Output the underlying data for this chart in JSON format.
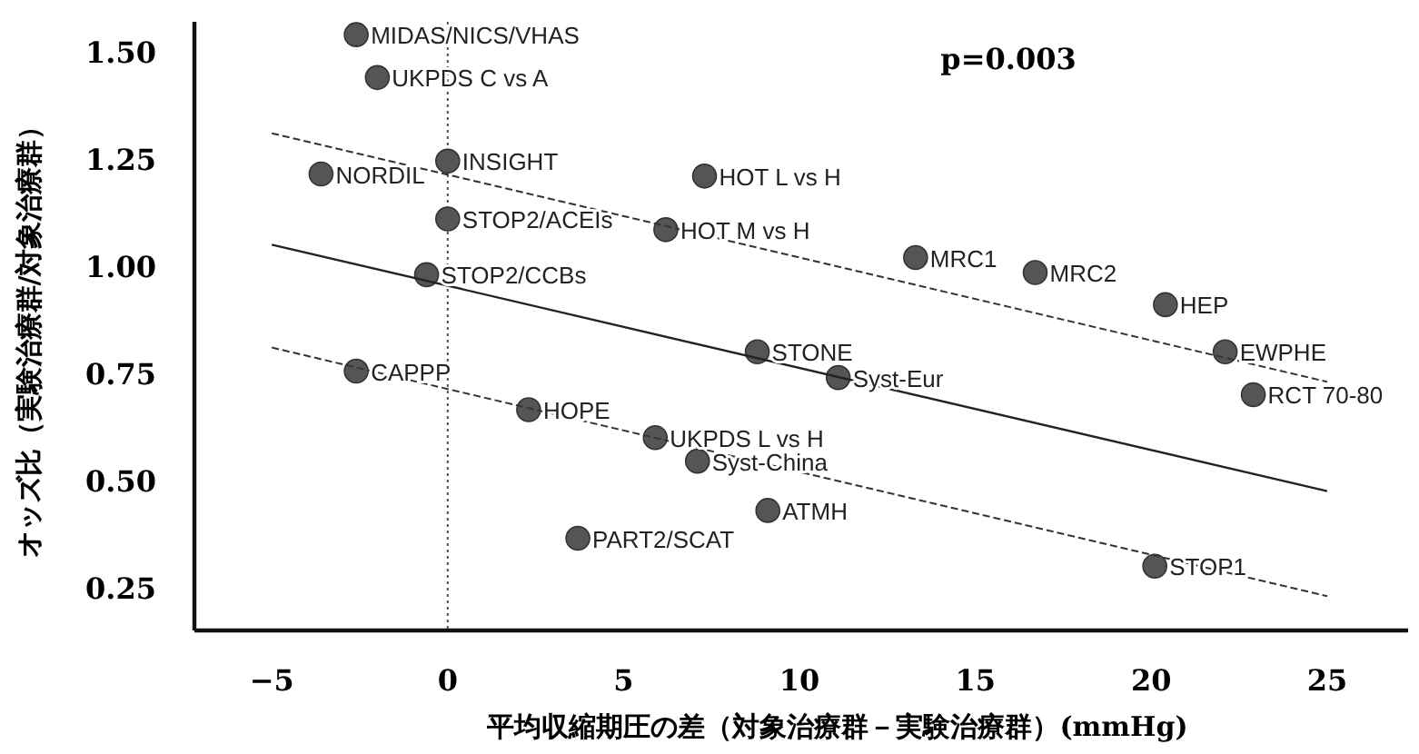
{
  "chart_data": {
    "type": "scatter",
    "xlabel": "平均収縮期圧の差（対象治療群－実験治療群）(mmHg)",
    "ylabel": "オッズ比（実験治療群/対象治療群）",
    "xlim": [
      -7.2,
      27.3
    ],
    "ylim": [
      0.15,
      1.57
    ],
    "xticks": [
      -5,
      0,
      5,
      10,
      15,
      20,
      25
    ],
    "yticks": [
      {
        "value": 0.25,
        "label": "0.25"
      },
      {
        "value": 0.5,
        "label": "0.50"
      },
      {
        "value": 0.75,
        "label": "0.75"
      },
      {
        "value": 1.0,
        "label": "1.00"
      },
      {
        "value": 1.25,
        "label": "1.25"
      },
      {
        "value": 1.5,
        "label": "1.50"
      }
    ],
    "series": [
      {
        "type": "scatter",
        "color": "#555555",
        "marker": "circle",
        "x": [
          -2.6,
          -2.0,
          -3.6,
          0,
          0,
          -0.6,
          7.3,
          6.2,
          13.3,
          16.7,
          20.4,
          22.1,
          22.9,
          8.8,
          11.1,
          -2.6,
          2.3,
          5.9,
          7.1,
          9.1,
          3.7,
          20.1
        ],
        "values": [
          1.54,
          1.44,
          1.215,
          1.245,
          1.11,
          0.98,
          1.21,
          1.085,
          1.02,
          0.985,
          0.91,
          0.8,
          0.7,
          0.8,
          0.74,
          0.755,
          0.665,
          0.6,
          0.545,
          0.43,
          0.365,
          0.3
        ]
      },
      {
        "type": "line",
        "color": "#333333",
        "marker": "none",
        "line_style": "dashed",
        "x": [
          -5,
          25
        ],
        "values": [
          1.31,
          0.73
        ]
      },
      {
        "type": "line",
        "color": "#222222",
        "marker": "none",
        "line_style": "solid",
        "x": [
          -5,
          25
        ],
        "values": [
          1.05,
          0.475
        ]
      },
      {
        "type": "line",
        "color": "#333333",
        "marker": "none",
        "line_style": "dashed",
        "x": [
          -5,
          25
        ],
        "values": [
          0.81,
          0.23
        ]
      }
    ],
    "ref_lines": [
      {
        "axis": "x",
        "value": 0,
        "color": "#555555",
        "line_style": "dotted"
      }
    ],
    "annotations": [
      {
        "text": "MIDAS/NICS/VHAS",
        "x": -2.6,
        "y": 1.54
      },
      {
        "text": "UKPDS C vs A",
        "x": -2.0,
        "y": 1.44
      },
      {
        "text": "NORDIL",
        "x": -3.6,
        "y": 1.215
      },
      {
        "text": "INSIGHT",
        "x": 0,
        "y": 1.245
      },
      {
        "text": "STOP2/ACEIs",
        "x": 0,
        "y": 1.11
      },
      {
        "text": "STOP2/CCBs",
        "x": -0.6,
        "y": 0.98
      },
      {
        "text": "HOT L vs H",
        "x": 7.3,
        "y": 1.21
      },
      {
        "text": "HOT M vs H",
        "x": 6.2,
        "y": 1.085
      },
      {
        "text": "MRC1",
        "x": 13.3,
        "y": 1.02
      },
      {
        "text": "MRC2",
        "x": 16.7,
        "y": 0.985
      },
      {
        "text": "HEP",
        "x": 20.4,
        "y": 0.91
      },
      {
        "text": "EWPHE",
        "x": 22.1,
        "y": 0.8
      },
      {
        "text": "RCT 70-80",
        "x": 22.9,
        "y": 0.7
      },
      {
        "text": "STONE",
        "x": 8.8,
        "y": 0.8
      },
      {
        "text": "Syst-Eur",
        "x": 11.1,
        "y": 0.74
      },
      {
        "text": "CAPPP",
        "x": -2.6,
        "y": 0.755
      },
      {
        "text": "HOPE",
        "x": 2.3,
        "y": 0.665
      },
      {
        "text": "UKPDS L vs H",
        "x": 5.9,
        "y": 0.6
      },
      {
        "text": "Syst-China",
        "x": 7.1,
        "y": 0.545
      },
      {
        "text": "ATMH",
        "x": 9.1,
        "y": 0.43
      },
      {
        "text": "PART2/SCAT",
        "x": 3.7,
        "y": 0.365
      },
      {
        "text": "STOP1",
        "x": 20.1,
        "y": 0.3
      },
      "p=0.003"
    ]
  }
}
